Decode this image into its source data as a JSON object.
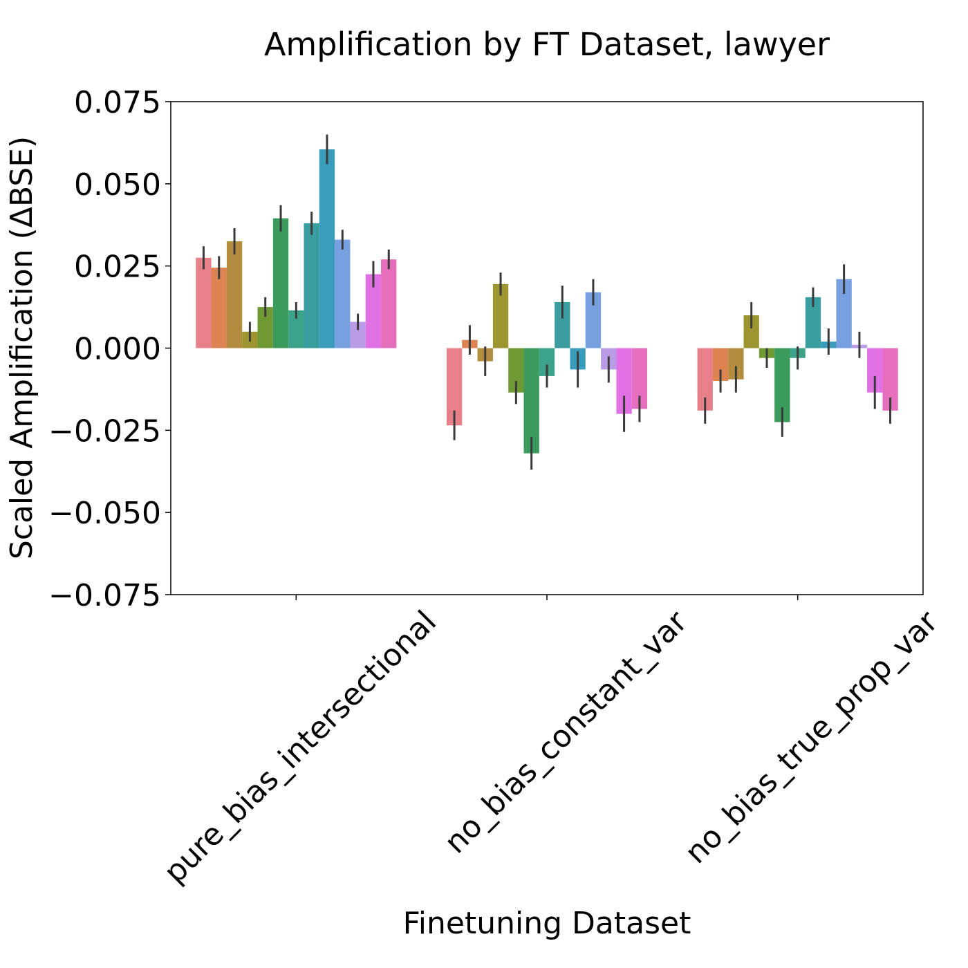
{
  "chart_data": {
    "type": "bar",
    "title": "Amplification by FT Dataset, lawyer",
    "xlabel": "Finetuning Dataset",
    "ylabel": "Scaled Amplification (ΔBSE)",
    "categories": [
      "pure_bias_intersectional",
      "no_bias_constant_var",
      "no_bias_true_prop_var"
    ],
    "ylim": [
      -0.075,
      0.075
    ],
    "yticks": [
      0.075,
      0.05,
      0.025,
      0.0,
      -0.025,
      -0.05,
      -0.075
    ],
    "ytick_labels": [
      "0.075",
      "0.050",
      "0.025",
      "0.000",
      "−0.025",
      "−0.050",
      "−0.075"
    ],
    "grid": false,
    "legend": "none",
    "colors": [
      "#e8808a",
      "#dd8452",
      "#b38c3d",
      "#9c9530",
      "#6f9a33",
      "#3a9b5c",
      "#3ca28a",
      "#3a9ea0",
      "#3a9dbc",
      "#76a0e0",
      "#b99be6",
      "#e070e4",
      "#e56fbd"
    ],
    "error_bar_color": "#3a3a3a",
    "values": [
      [
        0.0275,
        0.0245,
        0.0325,
        0.005,
        0.0125,
        0.0395,
        0.0115,
        0.038,
        0.0605,
        0.033,
        0.008,
        0.0225,
        0.027
      ],
      [
        -0.0235,
        0.0025,
        -0.004,
        0.0195,
        -0.0135,
        -0.032,
        -0.0085,
        0.014,
        -0.0065,
        0.017,
        -0.0065,
        -0.02,
        -0.0185
      ],
      [
        -0.019,
        -0.01,
        -0.0095,
        0.01,
        -0.003,
        -0.0225,
        -0.003,
        0.0155,
        0.002,
        0.021,
        0.001,
        -0.0135,
        -0.019
      ]
    ],
    "errors": [
      [
        0.0035,
        0.0035,
        0.004,
        0.003,
        0.003,
        0.004,
        0.0025,
        0.0035,
        0.0045,
        0.003,
        0.0025,
        0.004,
        0.003
      ],
      [
        0.0045,
        0.0045,
        0.0045,
        0.0035,
        0.0035,
        0.005,
        0.0035,
        0.005,
        0.0055,
        0.004,
        0.004,
        0.0055,
        0.004
      ],
      [
        0.004,
        0.0035,
        0.004,
        0.004,
        0.003,
        0.0045,
        0.0035,
        0.003,
        0.004,
        0.0045,
        0.004,
        0.005,
        0.004
      ]
    ]
  }
}
